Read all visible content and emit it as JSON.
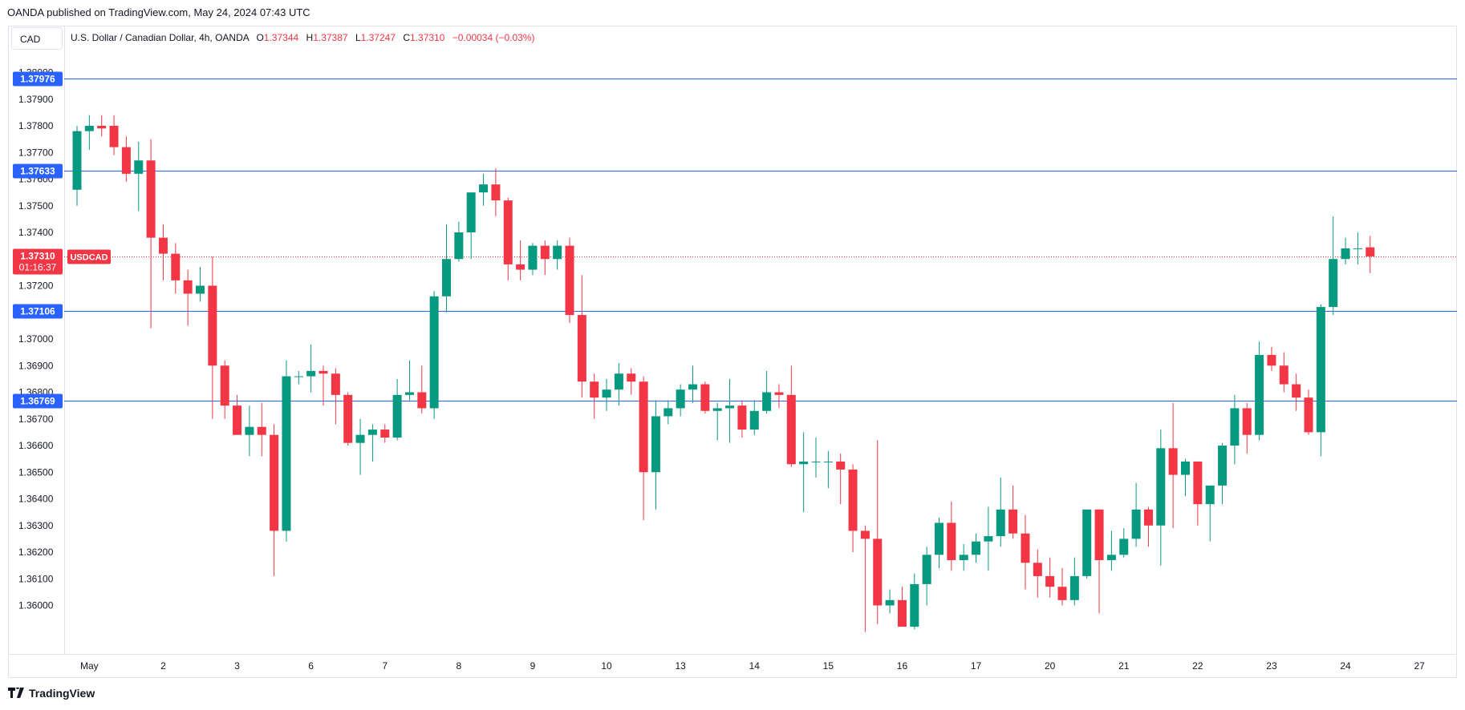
{
  "header": {
    "published": "OANDA published on TradingView.com, May 24, 2024 07:43 UTC"
  },
  "symbol_box": {
    "label": "CAD"
  },
  "legend": {
    "symbol": "U.S. Dollar / Canadian Dollar, 4h, OANDA",
    "open_k": "O",
    "open_v": "1.37344",
    "high_k": "H",
    "high_v": "1.37387",
    "low_k": "L",
    "low_v": "1.37247",
    "close_k": "C",
    "close_v": "1.37310",
    "change": "−0.00034 (−0.03%)"
  },
  "footer": {
    "brand": "TradingView"
  },
  "colors": {
    "up": "#089981",
    "down": "#f23645",
    "hline": "#2962ff",
    "price_line": "#f23645"
  },
  "chart_data": {
    "type": "candlestick",
    "title": "U.S. Dollar / Canadian Dollar, 4h, OANDA",
    "ylim": [
      1.3591,
      1.3993
    ],
    "y_ticks": [
      "1.36000",
      "1.36100",
      "1.36200",
      "1.36300",
      "1.36400",
      "1.36500",
      "1.36600",
      "1.36700",
      "1.36800",
      "1.36900",
      "1.37000",
      "1.37200",
      "1.37300",
      "1.37400",
      "1.37500",
      "1.37600",
      "1.37700",
      "1.37800",
      "1.37900",
      "1.38000"
    ],
    "x_ticks": [
      {
        "label": "May",
        "i": 1
      },
      {
        "label": "2",
        "i": 7
      },
      {
        "label": "3",
        "i": 13
      },
      {
        "label": "6",
        "i": 19
      },
      {
        "label": "7",
        "i": 25
      },
      {
        "label": "8",
        "i": 31
      },
      {
        "label": "9",
        "i": 37
      },
      {
        "label": "10",
        "i": 43
      },
      {
        "label": "13",
        "i": 49
      },
      {
        "label": "14",
        "i": 55
      },
      {
        "label": "15",
        "i": 61
      },
      {
        "label": "16",
        "i": 67
      },
      {
        "label": "17",
        "i": 73
      },
      {
        "label": "20",
        "i": 79
      },
      {
        "label": "21",
        "i": 85
      },
      {
        "label": "22",
        "i": 91
      },
      {
        "label": "23",
        "i": 97
      },
      {
        "label": "24",
        "i": 103
      },
      {
        "label": "27",
        "i": 109
      }
    ],
    "horizontal_lines": [
      {
        "price": 1.37976,
        "label": "1.37976"
      },
      {
        "price": 1.37633,
        "label": "1.37633"
      },
      {
        "price": 1.37106,
        "label": "1.37106"
      },
      {
        "price": 1.36769,
        "label": "1.36769"
      }
    ],
    "last_price": {
      "price": 1.3731,
      "label": "1.37310",
      "countdown": "01:16:37",
      "symbol": "USDCAD"
    },
    "candles": [
      [
        1.3756,
        1.378,
        1.375,
        1.3778
      ],
      [
        1.3778,
        1.3784,
        1.3771,
        1.378
      ],
      [
        1.378,
        1.3784,
        1.3776,
        1.3779
      ],
      [
        1.378,
        1.3784,
        1.3769,
        1.3772
      ],
      [
        1.3772,
        1.3776,
        1.3759,
        1.3762
      ],
      [
        1.3762,
        1.3774,
        1.3748,
        1.3767
      ],
      [
        1.3767,
        1.3775,
        1.3704,
        1.3738
      ],
      [
        1.3738,
        1.3743,
        1.3722,
        1.3732
      ],
      [
        1.3732,
        1.3736,
        1.3717,
        1.3722
      ],
      [
        1.3722,
        1.3726,
        1.3705,
        1.3717
      ],
      [
        1.3717,
        1.3727,
        1.3714,
        1.372
      ],
      [
        1.372,
        1.3731,
        1.367,
        1.369
      ],
      [
        1.369,
        1.3692,
        1.367,
        1.3675
      ],
      [
        1.3675,
        1.3679,
        1.3665,
        1.3664
      ],
      [
        1.3664,
        1.3675,
        1.3656,
        1.3667
      ],
      [
        1.3667,
        1.3676,
        1.3656,
        1.3664
      ],
      [
        1.3664,
        1.3668,
        1.3611,
        1.3628
      ],
      [
        1.3628,
        1.3692,
        1.3624,
        1.3686
      ],
      [
        1.3686,
        1.3688,
        1.3683,
        1.3686
      ],
      [
        1.3686,
        1.3698,
        1.368,
        1.3688
      ],
      [
        1.3688,
        1.369,
        1.3675,
        1.3687
      ],
      [
        1.3687,
        1.3689,
        1.3668,
        1.3679
      ],
      [
        1.3679,
        1.368,
        1.366,
        1.3661
      ],
      [
        1.3661,
        1.367,
        1.3649,
        1.3664
      ],
      [
        1.3664,
        1.3668,
        1.3654,
        1.3666
      ],
      [
        1.3666,
        1.3668,
        1.3661,
        1.3663
      ],
      [
        1.3663,
        1.3685,
        1.3662,
        1.3679
      ],
      [
        1.3679,
        1.3692,
        1.3677,
        1.368
      ],
      [
        1.368,
        1.369,
        1.3672,
        1.3674
      ],
      [
        1.3674,
        1.3718,
        1.367,
        1.3716
      ],
      [
        1.3716,
        1.3743,
        1.371,
        1.373
      ],
      [
        1.373,
        1.3744,
        1.3729,
        1.374
      ],
      [
        1.374,
        1.3752,
        1.373,
        1.3755
      ],
      [
        1.3755,
        1.3762,
        1.375,
        1.3758
      ],
      [
        1.3758,
        1.3764,
        1.3746,
        1.3752
      ],
      [
        1.3752,
        1.3753,
        1.3722,
        1.3728
      ],
      [
        1.3728,
        1.3737,
        1.3722,
        1.3726
      ],
      [
        1.3726,
        1.3736,
        1.3724,
        1.3735
      ],
      [
        1.3735,
        1.3737,
        1.3724,
        1.373
      ],
      [
        1.373,
        1.3737,
        1.3726,
        1.3735
      ],
      [
        1.3735,
        1.3738,
        1.3706,
        1.3709
      ],
      [
        1.3709,
        1.3724,
        1.3678,
        1.3684
      ],
      [
        1.3684,
        1.3687,
        1.367,
        1.3678
      ],
      [
        1.3678,
        1.3685,
        1.3673,
        1.3681
      ],
      [
        1.3681,
        1.3691,
        1.3675,
        1.3687
      ],
      [
        1.3687,
        1.3689,
        1.3679,
        1.3684
      ],
      [
        1.3684,
        1.3686,
        1.3632,
        1.365
      ],
      [
        1.365,
        1.3677,
        1.3636,
        1.3671
      ],
      [
        1.3671,
        1.3677,
        1.3668,
        1.3674
      ],
      [
        1.3674,
        1.3683,
        1.3671,
        1.3681
      ],
      [
        1.3681,
        1.369,
        1.3676,
        1.3683
      ],
      [
        1.3683,
        1.3684,
        1.3672,
        1.3673
      ],
      [
        1.3673,
        1.3676,
        1.3662,
        1.3674
      ],
      [
        1.3674,
        1.3685,
        1.3661,
        1.3675
      ],
      [
        1.3675,
        1.3677,
        1.3663,
        1.3666
      ],
      [
        1.3666,
        1.3677,
        1.3664,
        1.3673
      ],
      [
        1.3673,
        1.3688,
        1.3672,
        1.368
      ],
      [
        1.368,
        1.3683,
        1.3674,
        1.3679
      ],
      [
        1.3679,
        1.369,
        1.3652,
        1.3653
      ],
      [
        1.3653,
        1.3665,
        1.3635,
        1.3654
      ],
      [
        1.3654,
        1.3663,
        1.3648,
        1.3654
      ],
      [
        1.3654,
        1.3658,
        1.3644,
        1.3654
      ],
      [
        1.3654,
        1.3657,
        1.3638,
        1.3651
      ],
      [
        1.3651,
        1.3653,
        1.362,
        1.3628
      ],
      [
        1.3628,
        1.363,
        1.359,
        1.3625
      ],
      [
        1.3625,
        1.3662,
        1.3593,
        1.36
      ],
      [
        1.36,
        1.3606,
        1.3597,
        1.3602
      ],
      [
        1.3602,
        1.3607,
        1.3592,
        1.3592
      ],
      [
        1.3592,
        1.3612,
        1.3591,
        1.3608
      ],
      [
        1.3608,
        1.3622,
        1.36,
        1.3619
      ],
      [
        1.3619,
        1.3633,
        1.3614,
        1.3631
      ],
      [
        1.3631,
        1.3639,
        1.3613,
        1.3617
      ],
      [
        1.3617,
        1.3623,
        1.3613,
        1.3619
      ],
      [
        1.3619,
        1.3627,
        1.3616,
        1.3624
      ],
      [
        1.3624,
        1.3637,
        1.3613,
        1.3626
      ],
      [
        1.3626,
        1.3648,
        1.3622,
        1.3636
      ],
      [
        1.3636,
        1.3645,
        1.3625,
        1.3627
      ],
      [
        1.3627,
        1.3634,
        1.3606,
        1.3616
      ],
      [
        1.3616,
        1.3621,
        1.3603,
        1.3611
      ],
      [
        1.3611,
        1.3618,
        1.3603,
        1.3607
      ],
      [
        1.3607,
        1.3614,
        1.36,
        1.3602
      ],
      [
        1.3602,
        1.3618,
        1.36,
        1.3611
      ],
      [
        1.3611,
        1.3636,
        1.361,
        1.3636
      ],
      [
        1.3636,
        1.3636,
        1.3597,
        1.3617
      ],
      [
        1.3617,
        1.3628,
        1.3613,
        1.3619
      ],
      [
        1.3619,
        1.3629,
        1.3618,
        1.3625
      ],
      [
        1.3625,
        1.3646,
        1.3622,
        1.3636
      ],
      [
        1.3636,
        1.3637,
        1.3622,
        1.363
      ],
      [
        1.363,
        1.3666,
        1.3615,
        1.3659
      ],
      [
        1.3659,
        1.3676,
        1.3629,
        1.3649
      ],
      [
        1.3649,
        1.3655,
        1.3641,
        1.3654
      ],
      [
        1.3654,
        1.3654,
        1.363,
        1.3638
      ],
      [
        1.3638,
        1.3645,
        1.3624,
        1.3645
      ],
      [
        1.3645,
        1.3661,
        1.3638,
        1.366
      ],
      [
        1.366,
        1.3679,
        1.3653,
        1.3674
      ],
      [
        1.3674,
        1.3676,
        1.3657,
        1.3664
      ],
      [
        1.3664,
        1.3699,
        1.3662,
        1.3694
      ],
      [
        1.3694,
        1.3697,
        1.3688,
        1.369
      ],
      [
        1.369,
        1.3695,
        1.368,
        1.3683
      ],
      [
        1.3683,
        1.3687,
        1.3673,
        1.3678
      ],
      [
        1.3678,
        1.3681,
        1.3664,
        1.3665
      ],
      [
        1.3665,
        1.3713,
        1.3656,
        1.3712
      ],
      [
        1.3712,
        1.3746,
        1.3709,
        1.373
      ],
      [
        1.373,
        1.3738,
        1.3728,
        1.3734
      ],
      [
        1.3734,
        1.374,
        1.3728,
        1.3734
      ],
      [
        1.37344,
        1.37387,
        1.37247,
        1.3731
      ]
    ]
  }
}
